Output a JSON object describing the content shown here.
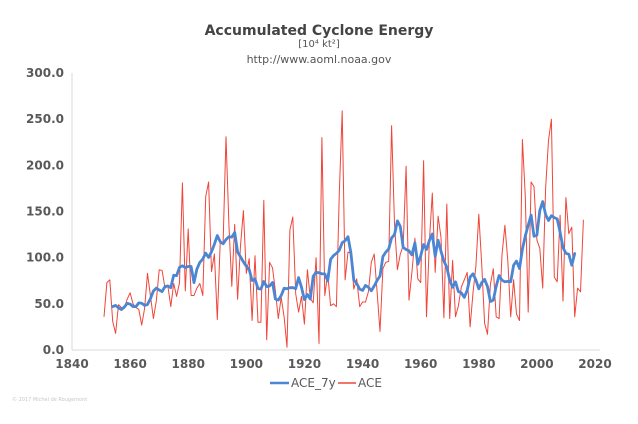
{
  "chart_data": {
    "type": "line",
    "title": "Accumulated Cyclone Energy",
    "subtitle": "[10⁴ kt²]",
    "source": "http://www.aoml.noaa.gov",
    "xlabel": "",
    "ylabel": "",
    "xlim": [
      1840,
      2020
    ],
    "ylim": [
      0,
      300
    ],
    "x_ticks": [
      "1840",
      "1860",
      "1880",
      "1900",
      "1920",
      "1940",
      "1960",
      "1980",
      "2000",
      "2020"
    ],
    "y_ticks": [
      "0.0",
      "50.0",
      "100.0",
      "150.0",
      "200.0",
      "250.0",
      "300.0"
    ],
    "grid": false,
    "legend_position": "bottom",
    "x_start": 1851,
    "series": [
      {
        "name": "ACE_7y",
        "color": "#4a86d4",
        "derived_from": "ACE",
        "window": 7
      },
      {
        "name": "ACE",
        "color": "#f0453a",
        "values": [
          36,
          73,
          76,
          31,
          18,
          49,
          46,
          45,
          55,
          62,
          50,
          46,
          44,
          27,
          45,
          83,
          59,
          34,
          53,
          87,
          86,
          67,
          69,
          47,
          72,
          58,
          73,
          181,
          64,
          131,
          59,
          59,
          67,
          72,
          59,
          166,
          182,
          85,
          104,
          33,
          116,
          116,
          231,
          136,
          69,
          136,
          55,
          113,
          151,
          83,
          99,
          32,
          102,
          30,
          30,
          162,
          11,
          95,
          89,
          64,
          34,
          57,
          36,
          3,
          130,
          144,
          61,
          41,
          58,
          28,
          87,
          56,
          51,
          100,
          7,
          230,
          59,
          83,
          48,
          50,
          47,
          170,
          259,
          76,
          106,
          105,
          66,
          77,
          47,
          52,
          52,
          63,
          95,
          104,
          63,
          20,
          88,
          95,
          96,
          243,
          137,
          87,
          104,
          113,
          199,
          54,
          84,
          121,
          77,
          73,
          205,
          36,
          118,
          170,
          84,
          145,
          122,
          35,
          158,
          34,
          97,
          36,
          48,
          68,
          76,
          84,
          25,
          62,
          91,
          147,
          93,
          29,
          17,
          71,
          88,
          36,
          34,
          103,
          135,
          97,
          36,
          76,
          39,
          32,
          228,
          166,
          41,
          182,
          177,
          119,
          110,
          67,
          175,
          227,
          250,
          79,
          74,
          146,
          53,
          165,
          126,
          133,
          36,
          67,
          63,
          141
        ]
      }
    ],
    "smooth_end": 2013
  },
  "titles": {
    "main": "Accumulated Cyclone Energy",
    "units": "[10⁴ kt²]",
    "url": "http://www.aoml.noaa.gov"
  },
  "watermark": "© 2017 Michel de Rougemont"
}
